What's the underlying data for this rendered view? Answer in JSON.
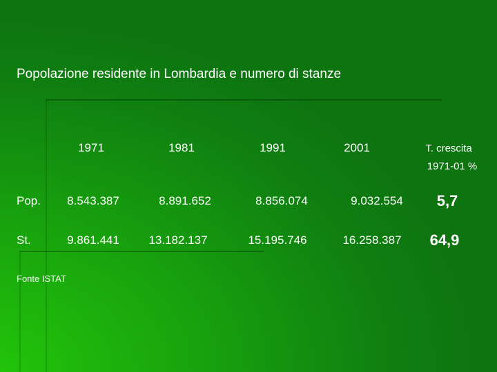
{
  "title": "Popolazione residente in Lombardia e numero di stanze",
  "table": {
    "header": {
      "years": [
        "1971",
        "1981",
        "1991",
        "2001"
      ],
      "rate": [
        "T. crescita",
        "1971-01 %"
      ]
    },
    "rows": [
      {
        "label": "Pop.",
        "values": [
          "8.543.387",
          "8.891.652",
          "8.856.074",
          "9.032.554"
        ],
        "rate": "5,7"
      },
      {
        "label": "St.",
        "values": [
          "9.861.441",
          "13.182.137",
          "15.195.746",
          "16.258.387"
        ],
        "rate": "64,9"
      }
    ]
  },
  "source": "Fonte ISTAT"
}
